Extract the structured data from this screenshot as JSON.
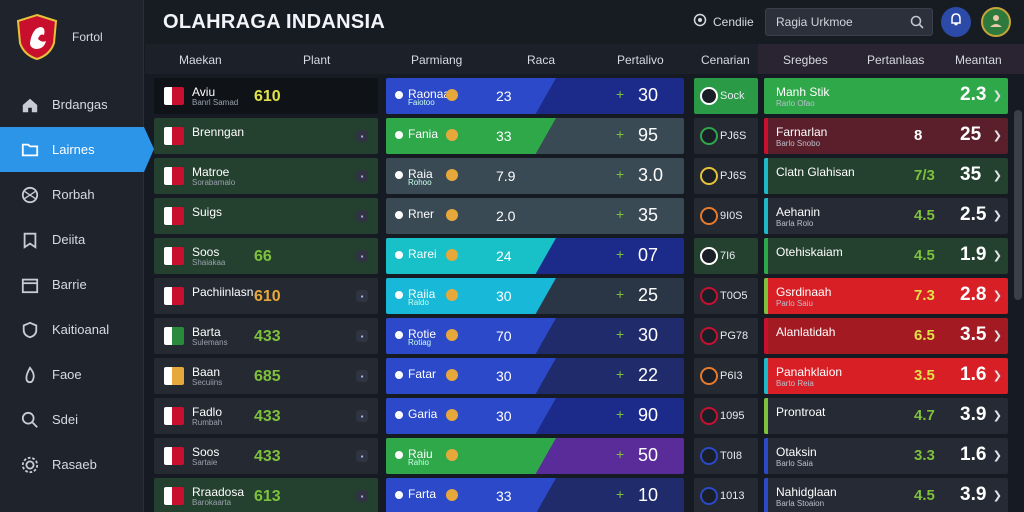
{
  "app": {
    "title": "OLAHRAGA INDANSIA",
    "brand_text": "Fortol"
  },
  "header": {
    "settings_label": "Cendiie",
    "search_value": "Ragia Urkmoe"
  },
  "sidebar": {
    "items": [
      {
        "label": "Brdangas",
        "icon": "home-icon"
      },
      {
        "label": "Lairnes",
        "icon": "folder-icon",
        "active": true
      },
      {
        "label": "Rorbah",
        "icon": "ball-icon"
      },
      {
        "label": "Deiita",
        "icon": "bookmark-icon"
      },
      {
        "label": "Barrie",
        "icon": "calendar-icon"
      },
      {
        "label": "Kaitioanal",
        "icon": "shield-icon"
      },
      {
        "label": "Faoe",
        "icon": "flame-icon"
      },
      {
        "label": "Sdei",
        "icon": "search-icon"
      },
      {
        "label": "Rasaeb",
        "icon": "gear-icon"
      }
    ]
  },
  "columns": [
    "Maekan",
    "Plant",
    "Parmiang",
    "Raca",
    "Pertalivo",
    "Cenarian",
    "Sregbes",
    "Pertanlaas",
    "Meantan"
  ],
  "teams": [
    {
      "name": "Aviu",
      "sub": "Banrl Samad",
      "val": "610",
      "color": "#e0e24a",
      "style": "dark",
      "flag": "#c8102e"
    },
    {
      "name": "Brenngan",
      "sub": "",
      "val": "",
      "color": "#ffffff",
      "style": "green",
      "flag": "#c8102e"
    },
    {
      "name": "Matroe",
      "sub": "Sorabamalo",
      "val": "",
      "color": "#ffffff",
      "style": "green",
      "flag": "#c8102e"
    },
    {
      "name": "Suigs",
      "sub": "",
      "val": "",
      "color": "#ffffff",
      "style": "green",
      "flag": "#c8102e"
    },
    {
      "name": "Soos",
      "sub": "Shaiakaa",
      "val": "66",
      "color": "#7ec13c",
      "style": "green",
      "flag": "#c8102e"
    },
    {
      "name": "Pachiinlasn",
      "sub": "",
      "val": "610",
      "color": "#e6a83a",
      "style": "",
      "flag": "#c8102e"
    },
    {
      "name": "Barta",
      "sub": "Sulemans",
      "val": "433",
      "color": "#7ec13c",
      "style": "",
      "flag": "#2a8a3c"
    },
    {
      "name": "Baan",
      "sub": "Secuiins",
      "val": "685",
      "color": "#7ec13c",
      "style": "",
      "flag": "#e6a83a"
    },
    {
      "name": "Fadlo",
      "sub": "Rumbah",
      "val": "433",
      "color": "#7ec13c",
      "style": "",
      "flag": "#c8102e"
    },
    {
      "name": "Soos",
      "sub": "Sartaie",
      "val": "433",
      "color": "#7ec13c",
      "style": "",
      "flag": "#c8102e"
    },
    {
      "name": "Rraadosa",
      "sub": "Barokaarta",
      "val": "613",
      "color": "#7ec13c",
      "style": "green",
      "flag": "#c8102e"
    }
  ],
  "matches": [
    {
      "label": "Raonaa",
      "sub": "Faiotoo",
      "mid": "23",
      "arrow": "+",
      "score": "30",
      "from": "#2b49c8",
      "to": "#1c2a8a",
      "w": 170
    },
    {
      "label": "Fania",
      "sub": "",
      "mid": "33",
      "arrow": "+",
      "score": "95",
      "from": "#2fa84a",
      "to": "#3a4a55",
      "w": 170
    },
    {
      "label": "Raia",
      "sub": "Rohoo",
      "mid": "7.9",
      "arrow": "+",
      "score": "3.0",
      "from": "#3a4a55",
      "to": "#3a4a55",
      "w": 0
    },
    {
      "label": "Rner",
      "sub": "",
      "mid": "2.0",
      "arrow": "+",
      "score": "35",
      "from": "#3a4a55",
      "to": "#3a4a55",
      "w": 0
    },
    {
      "label": "Rarei",
      "sub": "",
      "mid": "24",
      "arrow": "+",
      "score": "07",
      "from": "#18c1c8",
      "to": "#1c2a8a",
      "w": 170
    },
    {
      "label": "Raiia",
      "sub": "Raldo",
      "mid": "30",
      "arrow": "+",
      "score": "25",
      "from": "#18b8d8",
      "to": "#2a3645",
      "w": 170
    },
    {
      "label": "Rotie",
      "sub": "Rotiag",
      "mid": "70",
      "arrow": "+",
      "score": "30",
      "from": "#2b49c8",
      "to": "#1f2b6a",
      "w": 170
    },
    {
      "label": "Fatar",
      "sub": "",
      "mid": "30",
      "arrow": "+",
      "score": "22",
      "from": "#2b49c8",
      "to": "#1f2b6a",
      "w": 170
    },
    {
      "label": "Garia",
      "sub": "",
      "mid": "30",
      "arrow": "+",
      "score": "90",
      "from": "#2b49c8",
      "to": "#1c2a8a",
      "w": 170
    },
    {
      "label": "Raiu",
      "sub": "Rahio",
      "mid": "",
      "arrow": "+",
      "score": "50",
      "from": "#2fa84a",
      "to": "#5a2c9a",
      "w": 170
    },
    {
      "label": "Farta",
      "sub": "",
      "mid": "33",
      "arrow": "+",
      "score": "10",
      "from": "#2b49c8",
      "to": "#1f2b6a",
      "w": 170
    }
  ],
  "codes": [
    {
      "code": "Sock",
      "style": "green",
      "dot": "#ffffff"
    },
    {
      "code": "PJ6S",
      "style": "",
      "dot": "#2fa84a"
    },
    {
      "code": "PJ6S",
      "style": "",
      "dot": "#e6c23a"
    },
    {
      "code": "9I0S",
      "style": "",
      "dot": "#e67a2a"
    },
    {
      "code": "7I6",
      "style": "green2",
      "dot": "#ffffff"
    },
    {
      "code": "T0O5",
      "style": "",
      "dot": "#c8102e"
    },
    {
      "code": "PG78",
      "style": "",
      "dot": "#c8102e"
    },
    {
      "code": "P6I3",
      "style": "",
      "dot": "#e67a2a"
    },
    {
      "code": "1095",
      "style": "",
      "dot": "#c8102e"
    },
    {
      "code": "T0I8",
      "style": "",
      "dot": "#2b49c8"
    },
    {
      "code": "1013",
      "style": "",
      "dot": "#2b49c8"
    }
  ],
  "standings": [
    {
      "name": "Manh Stik",
      "sub": "Rarlo Ofao",
      "v1": "",
      "v2": "2.3",
      "bg": "#2fa84a",
      "bar": "#2fa84a",
      "v1c": "#e0e24a"
    },
    {
      "name": "Farnarlan",
      "sub": "Barlo Snobo",
      "v1": "8",
      "v2": "25",
      "bg": "#5a1f2a",
      "bar": "#c8102e",
      "v1c": "#ffffff"
    },
    {
      "name": "Clatn Glahisan",
      "sub": "",
      "v1": "7/3",
      "v2": "35",
      "bg": "#24402f",
      "bar": "#1fb8c8",
      "v1c": "#7ec13c"
    },
    {
      "name": "Aehanin",
      "sub": "Barla Rolo",
      "v1": "4.5",
      "v2": "2.5",
      "bg": "#262a34",
      "bar": "#1fb8c8",
      "v1c": "#7ec13c"
    },
    {
      "name": "Otehiskaiam",
      "sub": "",
      "v1": "4.5",
      "v2": "1.9",
      "bg": "#24402f",
      "bar": "#2fa84a",
      "v1c": "#7ec13c"
    },
    {
      "name": "Gsrdinaah",
      "sub": "Parlo Saiu",
      "v1": "7.3",
      "v2": "2.8",
      "bg": "#d81f26",
      "bar": "#7ec13c",
      "v1c": "#e0e24a"
    },
    {
      "name": "Alanlatidah",
      "sub": "",
      "v1": "6.5",
      "v2": "3.5",
      "bg": "#a31a22",
      "bar": "#c8102e",
      "v1c": "#e0e24a"
    },
    {
      "name": "Panahklaion",
      "sub": "Barto Reia",
      "v1": "3.5",
      "v2": "1.6",
      "bg": "#d81f26",
      "bar": "#1fb8c8",
      "v1c": "#e0e24a"
    },
    {
      "name": "Prontroat",
      "sub": "",
      "v1": "4.7",
      "v2": "3.9",
      "bg": "#262a34",
      "bar": "#7ec13c",
      "v1c": "#7ec13c"
    },
    {
      "name": "Otaksin",
      "sub": "Barlo Saia",
      "v1": "3.3",
      "v2": "1.6",
      "bg": "#262a34",
      "bar": "#2b49c8",
      "v1c": "#7ec13c"
    },
    {
      "name": "Nahidglaan",
      "sub": "Barla Stoaion",
      "v1": "4.5",
      "v2": "3.9",
      "bg": "#262a34",
      "bar": "#2b49c8",
      "v1c": "#7ec13c"
    }
  ]
}
